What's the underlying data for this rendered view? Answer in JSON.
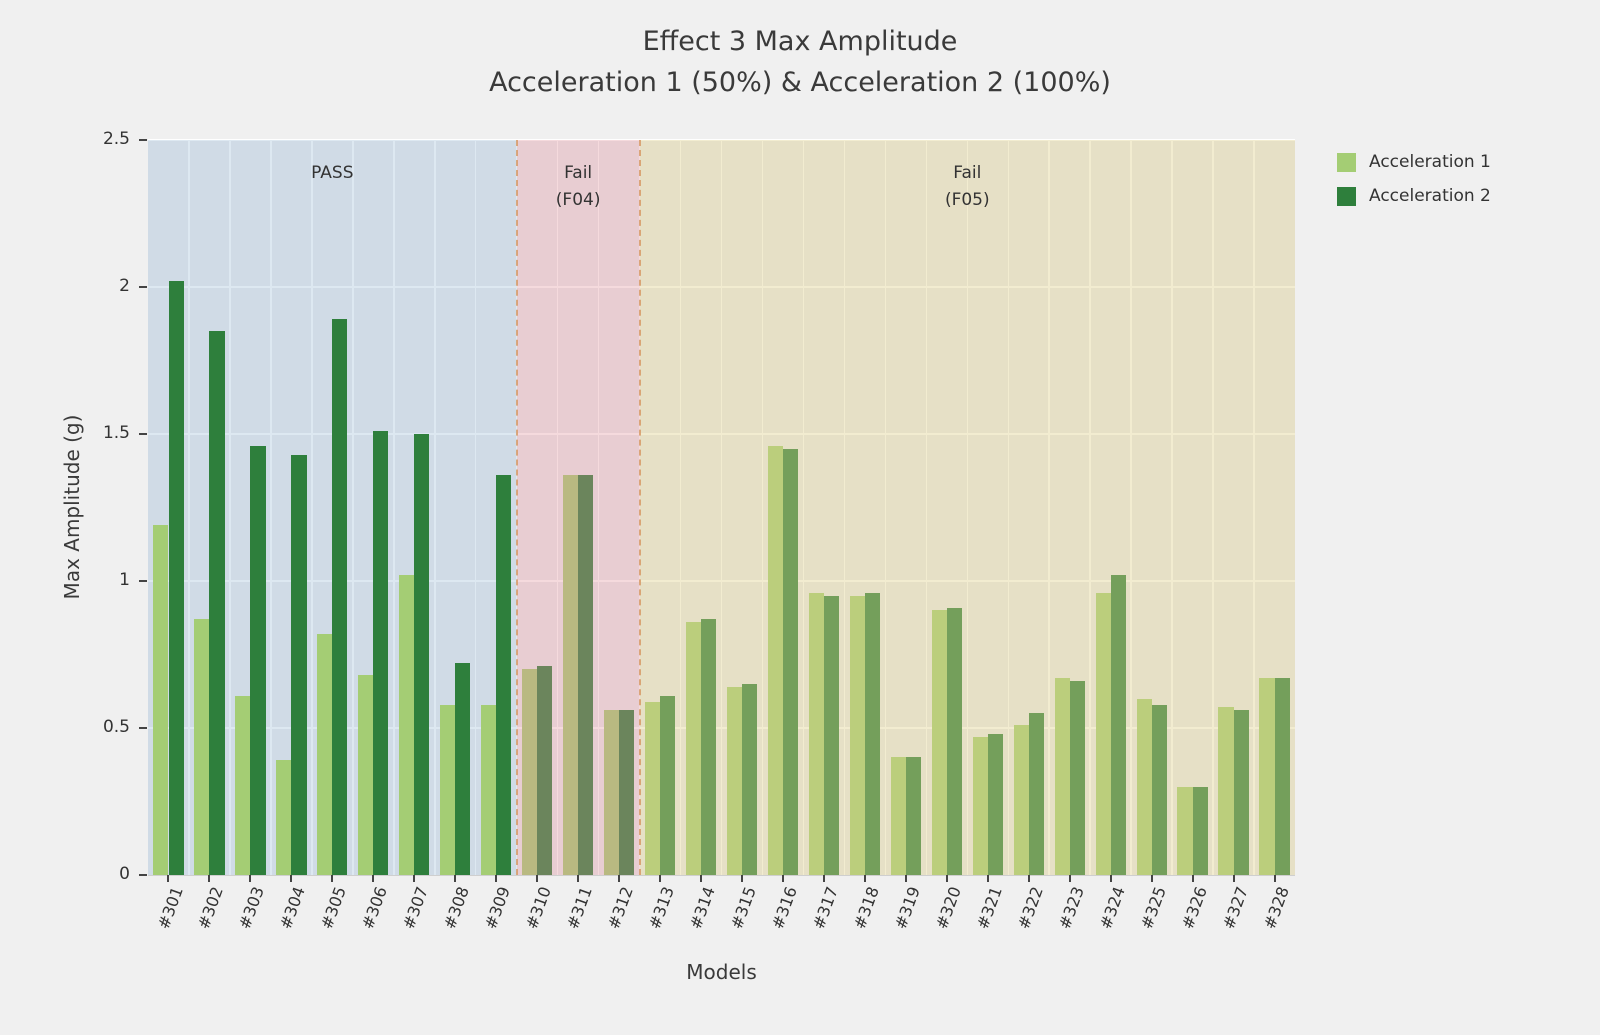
{
  "figure": {
    "title_line1": "Effect 3 Max Amplitude",
    "title_line2": "Acceleration 1 (50%) & Acceleration 2 (100%)",
    "background_color": "#f0f0f0"
  },
  "chart_data": {
    "type": "bar",
    "title": "Effect 3 Max Amplitude — Acceleration 1 (50%) & Acceleration 2 (100%)",
    "xlabel": "Models",
    "ylabel": "Max Amplitude (g)",
    "ylim": [
      0,
      2.5
    ],
    "yticks": [
      "0",
      "0.5",
      "1",
      "1.5",
      "2",
      "2.5"
    ],
    "grid": true,
    "legend_position": "outside upper right",
    "categories": [
      "#301",
      "#302",
      "#303",
      "#304",
      "#305",
      "#306",
      "#307",
      "#308",
      "#309",
      "#310",
      "#311",
      "#312",
      "#313",
      "#314",
      "#315",
      "#316",
      "#317",
      "#318",
      "#319",
      "#320",
      "#321",
      "#322",
      "#323",
      "#324",
      "#325",
      "#326",
      "#327",
      "#328"
    ],
    "series": [
      {
        "name": "Acceleration 1",
        "color": "#a4cd74",
        "values": [
          1.19,
          0.87,
          0.61,
          0.39,
          0.82,
          0.68,
          1.02,
          0.58,
          0.58,
          0.7,
          1.36,
          0.56,
          0.59,
          0.86,
          0.64,
          1.46,
          0.96,
          0.95,
          0.4,
          0.9,
          0.47,
          0.51,
          0.67,
          0.96,
          0.6,
          0.3,
          0.57,
          0.67
        ]
      },
      {
        "name": "Acceleration 2",
        "color": "#2e7f3c",
        "values": [
          2.02,
          1.85,
          1.46,
          1.43,
          1.89,
          1.51,
          1.5,
          0.72,
          1.36,
          0.71,
          1.36,
          0.56,
          0.61,
          0.87,
          0.65,
          1.45,
          0.95,
          0.96,
          0.4,
          0.91,
          0.48,
          0.55,
          0.66,
          1.02,
          0.58,
          0.3,
          0.56,
          0.67
        ]
      }
    ],
    "regions": [
      {
        "label_lines": [
          "PASS"
        ],
        "start": 0,
        "end": 9,
        "color": "rgba(158,188,216,0.35)",
        "tint_over_bars": false
      },
      {
        "label_lines": [
          "Fail",
          "(F04)"
        ],
        "start": 9,
        "end": 12,
        "color": "rgba(226,148,155,0.34)",
        "tint_over_bars": true
      },
      {
        "label_lines": [
          "Fail",
          "(F05)"
        ],
        "start": 12,
        "end": 28,
        "color": "rgba(223,207,138,0.40)",
        "tint_over_bars": true
      }
    ],
    "divider_color": "rgba(214,150,98,0.8)"
  }
}
